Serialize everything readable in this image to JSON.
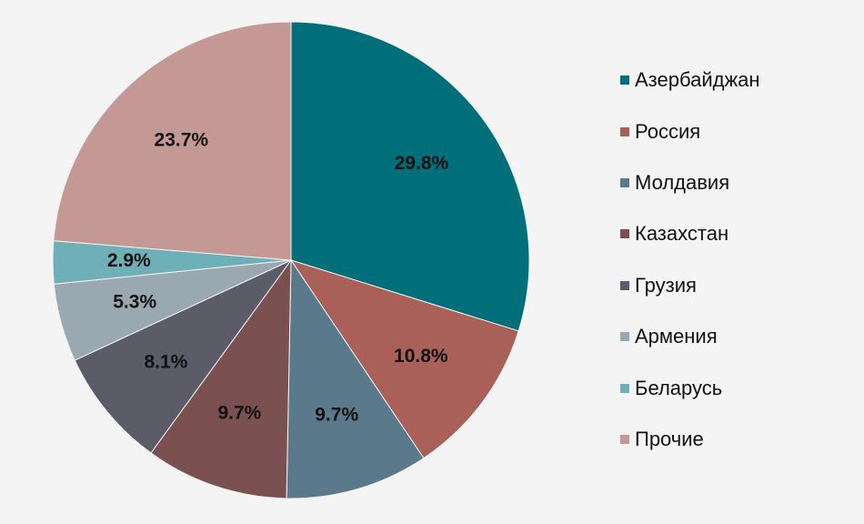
{
  "chart_data": {
    "type": "pie",
    "title": "",
    "start_angle_deg": 0,
    "direction": "clockwise",
    "legend_position": "right",
    "slices": [
      {
        "label": "Азербайджан",
        "value": 29.8,
        "value_label": "29.8%",
        "color": "#006f7a"
      },
      {
        "label": "Россия",
        "value": 10.8,
        "value_label": "10.8%",
        "color": "#a86058"
      },
      {
        "label": "Молдавия",
        "value": 9.7,
        "value_label": "9.7%",
        "color": "#5a7a8c"
      },
      {
        "label": "Казахстан",
        "value": 9.7,
        "value_label": "9.7%",
        "color": "#7a5050"
      },
      {
        "label": "Грузия",
        "value": 8.1,
        "value_label": "8.1%",
        "color": "#5c5c68"
      },
      {
        "label": "Армения",
        "value": 5.3,
        "value_label": "5.3%",
        "color": "#9aa8b2"
      },
      {
        "label": "Беларусь",
        "value": 2.9,
        "value_label": "2.9%",
        "color": "#6fb0b8"
      },
      {
        "label": "Прочие",
        "value": 23.7,
        "value_label": "23.7%",
        "color": "#c49894"
      }
    ]
  }
}
